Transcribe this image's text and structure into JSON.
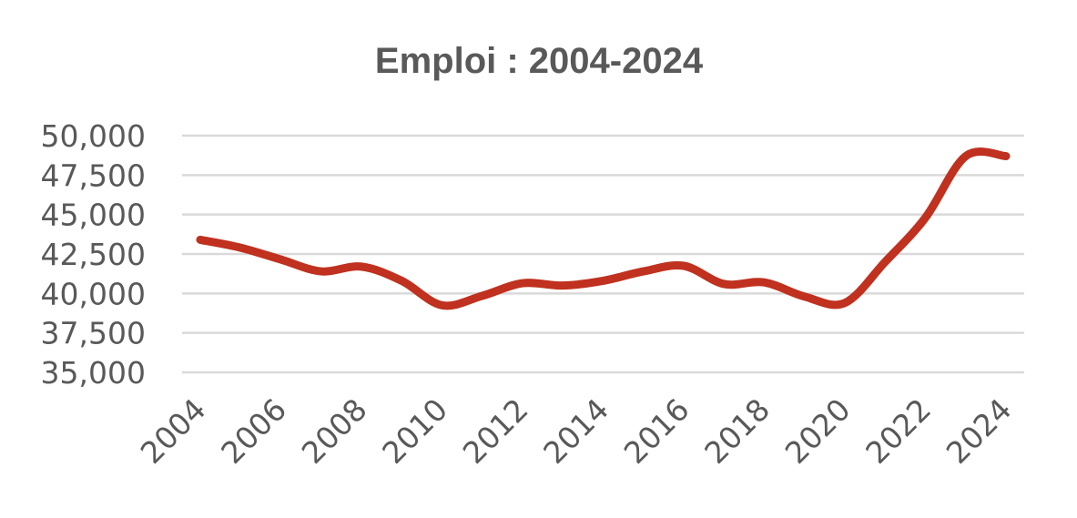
{
  "chart_data": {
    "type": "line",
    "title": "Emploi : 2004-2024",
    "xlabel": "",
    "ylabel": "",
    "x": [
      2004,
      2005,
      2006,
      2007,
      2008,
      2009,
      2010,
      2011,
      2012,
      2013,
      2014,
      2015,
      2016,
      2017,
      2018,
      2019,
      2020,
      2021,
      2022,
      2023,
      2024
    ],
    "x_tick_labels": [
      "2004",
      "2006",
      "2008",
      "2010",
      "2012",
      "2014",
      "2016",
      "2018",
      "2020",
      "2022",
      "2024"
    ],
    "y_tick_labels": [
      "35,000",
      "37,500",
      "40,000",
      "42,500",
      "45,000",
      "47,500",
      "50,000"
    ],
    "ylim": [
      35000,
      50000
    ],
    "grid": true,
    "series": [
      {
        "values": [
          43400,
          42900,
          42150,
          41400,
          41700,
          40800,
          39250,
          39850,
          40650,
          40500,
          40800,
          41400,
          41750,
          40600,
          40700,
          39800,
          39400,
          42000,
          44800,
          48700,
          48700
        ],
        "color": "#c0311f"
      }
    ]
  }
}
